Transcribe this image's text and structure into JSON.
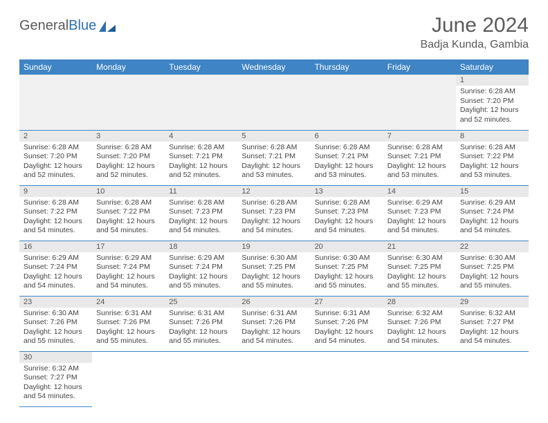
{
  "brand": {
    "name_part1": "General",
    "name_part2": "Blue"
  },
  "title": "June 2024",
  "location": "Badja Kunda, Gambia",
  "colors": {
    "header_bg": "#3f84c4",
    "header_text": "#ffffff",
    "daynum_bg": "#e9e9e9",
    "border": "#3f84c4",
    "text": "#444444",
    "title_text": "#5a5a5a"
  },
  "weekdays": [
    "Sunday",
    "Monday",
    "Tuesday",
    "Wednesday",
    "Thursday",
    "Friday",
    "Saturday"
  ],
  "leading_blanks": 6,
  "days": [
    {
      "n": 1,
      "sunrise": "6:28 AM",
      "sunset": "7:20 PM",
      "dl_h": 12,
      "dl_m": 52
    },
    {
      "n": 2,
      "sunrise": "6:28 AM",
      "sunset": "7:20 PM",
      "dl_h": 12,
      "dl_m": 52
    },
    {
      "n": 3,
      "sunrise": "6:28 AM",
      "sunset": "7:20 PM",
      "dl_h": 12,
      "dl_m": 52
    },
    {
      "n": 4,
      "sunrise": "6:28 AM",
      "sunset": "7:21 PM",
      "dl_h": 12,
      "dl_m": 52
    },
    {
      "n": 5,
      "sunrise": "6:28 AM",
      "sunset": "7:21 PM",
      "dl_h": 12,
      "dl_m": 53
    },
    {
      "n": 6,
      "sunrise": "6:28 AM",
      "sunset": "7:21 PM",
      "dl_h": 12,
      "dl_m": 53
    },
    {
      "n": 7,
      "sunrise": "6:28 AM",
      "sunset": "7:21 PM",
      "dl_h": 12,
      "dl_m": 53
    },
    {
      "n": 8,
      "sunrise": "6:28 AM",
      "sunset": "7:22 PM",
      "dl_h": 12,
      "dl_m": 53
    },
    {
      "n": 9,
      "sunrise": "6:28 AM",
      "sunset": "7:22 PM",
      "dl_h": 12,
      "dl_m": 54
    },
    {
      "n": 10,
      "sunrise": "6:28 AM",
      "sunset": "7:22 PM",
      "dl_h": 12,
      "dl_m": 54
    },
    {
      "n": 11,
      "sunrise": "6:28 AM",
      "sunset": "7:23 PM",
      "dl_h": 12,
      "dl_m": 54
    },
    {
      "n": 12,
      "sunrise": "6:28 AM",
      "sunset": "7:23 PM",
      "dl_h": 12,
      "dl_m": 54
    },
    {
      "n": 13,
      "sunrise": "6:28 AM",
      "sunset": "7:23 PM",
      "dl_h": 12,
      "dl_m": 54
    },
    {
      "n": 14,
      "sunrise": "6:29 AM",
      "sunset": "7:23 PM",
      "dl_h": 12,
      "dl_m": 54
    },
    {
      "n": 15,
      "sunrise": "6:29 AM",
      "sunset": "7:24 PM",
      "dl_h": 12,
      "dl_m": 54
    },
    {
      "n": 16,
      "sunrise": "6:29 AM",
      "sunset": "7:24 PM",
      "dl_h": 12,
      "dl_m": 54
    },
    {
      "n": 17,
      "sunrise": "6:29 AM",
      "sunset": "7:24 PM",
      "dl_h": 12,
      "dl_m": 54
    },
    {
      "n": 18,
      "sunrise": "6:29 AM",
      "sunset": "7:24 PM",
      "dl_h": 12,
      "dl_m": 55
    },
    {
      "n": 19,
      "sunrise": "6:30 AM",
      "sunset": "7:25 PM",
      "dl_h": 12,
      "dl_m": 55
    },
    {
      "n": 20,
      "sunrise": "6:30 AM",
      "sunset": "7:25 PM",
      "dl_h": 12,
      "dl_m": 55
    },
    {
      "n": 21,
      "sunrise": "6:30 AM",
      "sunset": "7:25 PM",
      "dl_h": 12,
      "dl_m": 55
    },
    {
      "n": 22,
      "sunrise": "6:30 AM",
      "sunset": "7:25 PM",
      "dl_h": 12,
      "dl_m": 55
    },
    {
      "n": 23,
      "sunrise": "6:30 AM",
      "sunset": "7:26 PM",
      "dl_h": 12,
      "dl_m": 55
    },
    {
      "n": 24,
      "sunrise": "6:31 AM",
      "sunset": "7:26 PM",
      "dl_h": 12,
      "dl_m": 55
    },
    {
      "n": 25,
      "sunrise": "6:31 AM",
      "sunset": "7:26 PM",
      "dl_h": 12,
      "dl_m": 55
    },
    {
      "n": 26,
      "sunrise": "6:31 AM",
      "sunset": "7:26 PM",
      "dl_h": 12,
      "dl_m": 54
    },
    {
      "n": 27,
      "sunrise": "6:31 AM",
      "sunset": "7:26 PM",
      "dl_h": 12,
      "dl_m": 54
    },
    {
      "n": 28,
      "sunrise": "6:32 AM",
      "sunset": "7:26 PM",
      "dl_h": 12,
      "dl_m": 54
    },
    {
      "n": 29,
      "sunrise": "6:32 AM",
      "sunset": "7:27 PM",
      "dl_h": 12,
      "dl_m": 54
    },
    {
      "n": 30,
      "sunrise": "6:32 AM",
      "sunset": "7:27 PM",
      "dl_h": 12,
      "dl_m": 54
    }
  ],
  "labels": {
    "sunrise_prefix": "Sunrise: ",
    "sunset_prefix": "Sunset: ",
    "daylight_prefix": "Daylight: ",
    "hours_word": " hours",
    "and_word": "and ",
    "minutes_word": " minutes."
  }
}
